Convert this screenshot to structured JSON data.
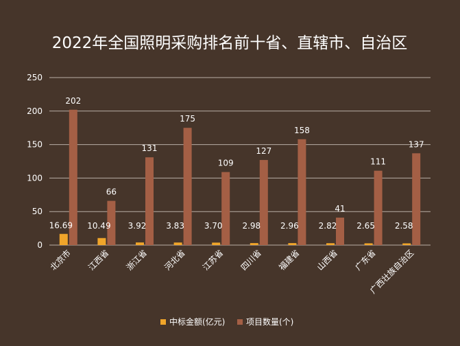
{
  "chart_data": {
    "type": "bar",
    "title": "2022年全国照明采购排名前十省、直辖市、自治区",
    "categories": [
      "北京市",
      "江西省",
      "浙江省",
      "河北省",
      "江苏省",
      "四川省",
      "福建省",
      "山西省",
      "广东省",
      "广西壮族自治区"
    ],
    "series": [
      {
        "name": "中标金额(亿元)",
        "values": [
          16.69,
          10.49,
          3.92,
          3.83,
          3.7,
          2.98,
          2.96,
          2.82,
          2.65,
          2.58
        ],
        "labels": [
          "16.69",
          "10.49",
          "3.92",
          "3.83",
          "3.70",
          "2.98",
          "2.96",
          "2.82",
          "2.65",
          "2.58"
        ],
        "color": "#f0a52a"
      },
      {
        "name": "项目数量(个)",
        "values": [
          202,
          66,
          131,
          175,
          109,
          127,
          158,
          41,
          111,
          137
        ],
        "labels": [
          "202",
          "66",
          "131",
          "175",
          "109",
          "127",
          "158",
          "41",
          "111",
          "137"
        ],
        "color": "#a45f45"
      }
    ],
    "y_ticks": [
      "0",
      "50",
      "100",
      "150",
      "200",
      "250"
    ],
    "ylim": [
      0,
      250
    ],
    "grid": true,
    "legend_position": "bottom",
    "colors": {
      "background": "#46352a",
      "grid": "#b9aea6",
      "text": "#ffffff"
    }
  }
}
